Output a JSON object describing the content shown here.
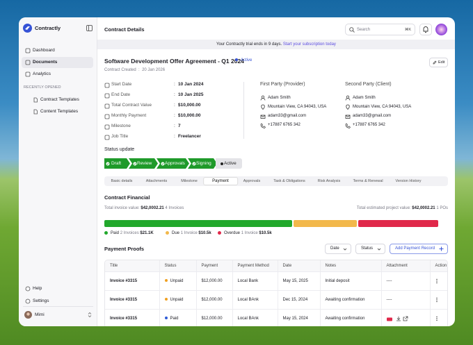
{
  "sidebar": {
    "brand": "Contractly",
    "nav": [
      "Dashboard",
      "Documents",
      "Analytics"
    ],
    "recent_heading": "RECENTLY OPENED",
    "recent": [
      "Contract Templates",
      "Content Templates"
    ],
    "footer": [
      "Help",
      "Settings"
    ],
    "user": "Mimi"
  },
  "header": {
    "title": "Contract Details",
    "search_placeholder": "Search",
    "shortcut": "⌘K"
  },
  "banner": {
    "text": "Your Contractly trial ends in 9 days.",
    "link": "Start your subscription today"
  },
  "contract": {
    "title": "Software Development Offer Agreement - Q1 2024",
    "status": "Active",
    "edit": "Edit",
    "created_label": "Contract Created",
    "created": "20 Jan 2026",
    "separator": ":",
    "fields": [
      {
        "label": "Start Date",
        "value": "10 Jan 2024"
      },
      {
        "label": "End Date",
        "value": "10 Jan 2025"
      },
      {
        "label": "Total Contract Value",
        "value": "$10,000.00"
      },
      {
        "label": "Monthly Payment",
        "value": "$10,000.00"
      },
      {
        "label": "Milestone",
        "value": "7"
      },
      {
        "label": "Job Title",
        "value": "Freelancer"
      }
    ],
    "parties": [
      {
        "heading": "First Party (Provider)",
        "name": "Adam Smith",
        "address": "Mountain View, CA 94043, USA",
        "email": "adam33@gmail.com",
        "phone": "+17887 6765 342"
      },
      {
        "heading": "Second Party (Client)",
        "name": "Adam Smith",
        "address": "Mountain View, CA 94043, USA",
        "email": "adam33@gmail.com",
        "phone": "+17887 6765 342"
      }
    ]
  },
  "status_update": {
    "heading": "Status update",
    "steps": [
      "Draft",
      "Review",
      "Approvals",
      "Signing",
      "Active"
    ]
  },
  "tabs": {
    "items": [
      "Basic details",
      "Attachments",
      "Milestone",
      "Payment",
      "Approvals",
      "Task & Obligations",
      "Risk Analysis",
      "Terms & Renewal",
      "Version History"
    ],
    "active": 3
  },
  "financial": {
    "heading": "Contract Financial",
    "total_label": "Total invoice value:",
    "total": "$42,0002.21",
    "total_count": "4 Invoices",
    "estimate_label": "Total estimated project value:",
    "estimate": "$42,0002.21",
    "estimate_count": "1 POs",
    "legend": [
      {
        "name": "Paid",
        "count": "2 Invoices",
        "amount": "$21.1K",
        "color": "#22a82c"
      },
      {
        "name": "Due",
        "count": "1 Invoice",
        "amount": "$10.5k",
        "color": "#f2b84b"
      },
      {
        "name": "Overdue",
        "count": "1 Invoice",
        "amount": "$10.5k",
        "color": "#e0284a"
      }
    ]
  },
  "proofs": {
    "heading": "Payment Proofs",
    "filters": [
      "Date",
      "Status"
    ],
    "add": "Add Payment Record",
    "columns": [
      "Title",
      "Status",
      "Payment",
      "Payment Method",
      "Date",
      "Notes",
      "Attachment",
      "Action"
    ],
    "status_colors": {
      "Unpaid": "#f0a020",
      "Paid": "#2f5bd6"
    },
    "rows": [
      {
        "title": "Invoice #3315",
        "status": "Unpaid",
        "payment": "$12,000.00",
        "method": "Local Bank",
        "date": "May 15, 2025",
        "notes": "Initial deposit",
        "attachment": "----"
      },
      {
        "title": "Invoice #3315",
        "status": "Unpaid",
        "payment": "$12,000.00",
        "method": "Local BAnk",
        "date": "Dec 15, 2024",
        "notes": "Awaiting confirmation",
        "attachment": "----"
      },
      {
        "title": "Invoice #3315",
        "status": "Paid",
        "payment": "$12,000.00",
        "method": "Local BAnk",
        "date": "May 15, 2024",
        "notes": "Awaiting confirmation"
      }
    ]
  }
}
